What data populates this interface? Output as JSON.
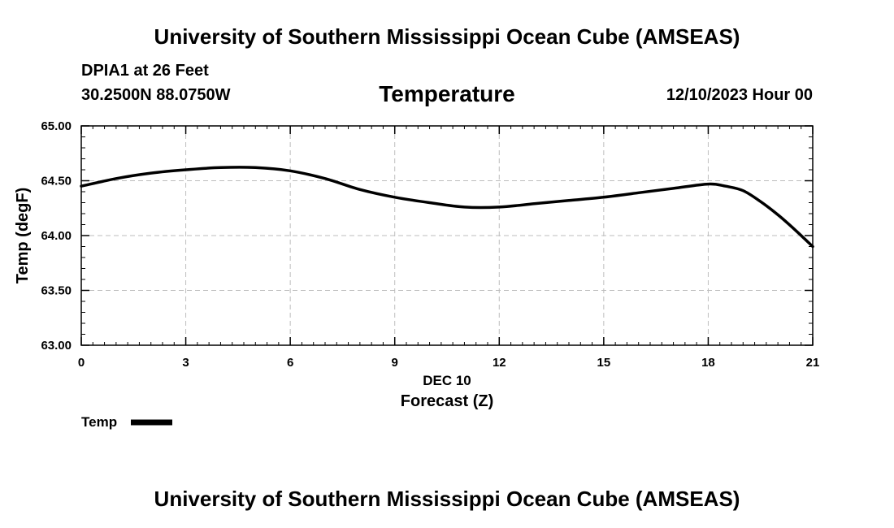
{
  "header": {
    "title": "University of Southern Mississippi Ocean Cube (AMSEAS)",
    "station": "DPIA1 at 26 Feet",
    "coords": "30.2500N  88.0750W",
    "date": "12/10/2023 Hour 00"
  },
  "footer": {
    "title": "University of Southern Mississippi Ocean Cube (AMSEAS)"
  },
  "chart_data": {
    "type": "line",
    "title": "Temperature",
    "xlabel": "Forecast (Z)",
    "date_label": "DEC 10",
    "ylabel": "Temp (degF)",
    "xlim": [
      0,
      21
    ],
    "ylim": [
      63.0,
      65.0
    ],
    "xticks": [
      0,
      3,
      6,
      9,
      12,
      15,
      18,
      21
    ],
    "yticks": [
      63.0,
      63.5,
      64.0,
      64.5,
      65.0
    ],
    "ytick_labels": [
      "63.00",
      "63.50",
      "64.00",
      "64.50",
      "65.00"
    ],
    "grid": true,
    "legend": "bottom-left",
    "series": [
      {
        "name": "Temp",
        "color": "#000000",
        "x": [
          0,
          1,
          2,
          3,
          4,
          5,
          6,
          7,
          8,
          9,
          10,
          11,
          12,
          13,
          14,
          15,
          16,
          17,
          18,
          18.5,
          19,
          19.5,
          20,
          20.5,
          21
        ],
        "y": [
          64.45,
          64.52,
          64.57,
          64.6,
          64.62,
          64.62,
          64.59,
          64.52,
          64.42,
          64.35,
          64.3,
          64.26,
          64.26,
          64.29,
          64.32,
          64.35,
          64.39,
          64.43,
          64.47,
          64.45,
          64.41,
          64.31,
          64.19,
          64.05,
          63.9
        ]
      }
    ]
  }
}
